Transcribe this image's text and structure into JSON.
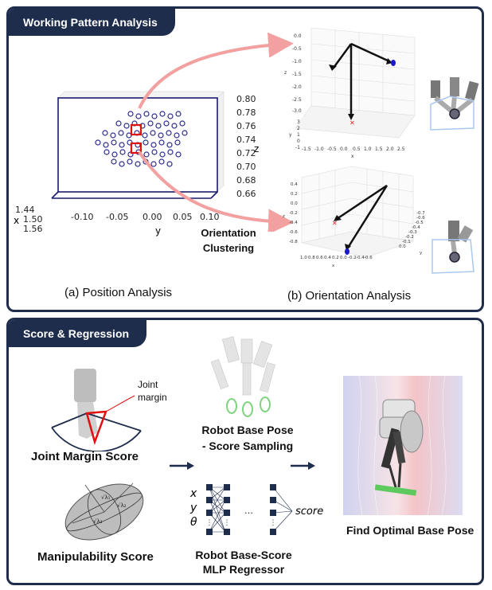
{
  "sections": {
    "top": "Working Pattern Analysis",
    "bottom": "Score & Regression"
  },
  "position_plot": {
    "z_ticks": [
      "0.80",
      "0.78",
      "0.76",
      "0.74",
      "0.72",
      "0.70",
      "0.68",
      "0.66"
    ],
    "z_label": "z",
    "y_ticks": [
      "-0.10",
      "-0.05",
      "0.00",
      "0.05",
      "0.10"
    ],
    "y_label": "y",
    "x_ticks": [
      "1.44",
      "1.50",
      "1.56"
    ],
    "x_label": "x"
  },
  "orientation_plot_top": {
    "z_ticks": [
      "0.0",
      "-0.5",
      "-1.0",
      "-1.5",
      "-2.0",
      "-2.5",
      "-3.0"
    ],
    "z_label": "z",
    "y_ticks": [
      "3",
      "2",
      "1",
      "0",
      "-1"
    ],
    "y_label": "y",
    "x_ticks": [
      "-1.5",
      "-1.0",
      "-0.5",
      "0.0",
      "0.5",
      "1.0",
      "1.5",
      "2.0",
      "2.5"
    ],
    "x_label": "x"
  },
  "orientation_plot_bottom": {
    "z_ticks": [
      "0.4",
      "0.2",
      "0.0",
      "-0.2",
      "-0.4",
      "-0.6",
      "-0.8"
    ],
    "z_label": "z",
    "x_ticks": [
      "1.0",
      "0.8",
      "0.6",
      "0.4",
      "0.2",
      "0.0",
      "-0.2",
      "-0.4",
      "-0.6"
    ],
    "x_label": "x",
    "y_ticks": [
      "0.0",
      "-0.1",
      "-0.2",
      "-0.3",
      "-0.4",
      "-0.5",
      "-0.6",
      "-0.7"
    ],
    "y_label": "y"
  },
  "labels": {
    "orientation_clustering": "Orientation\nClustering",
    "position_analysis": "(a) Position Analysis",
    "orientation_analysis": "(b) Orientation Analysis",
    "joint_margin": "Joint\nmargin",
    "joint_margin_score": "Joint Margin Score",
    "manipulability_score": "Manipulability Score",
    "robot_base_pose_sampling": "Robot Base Pose\n- Score Sampling",
    "mlp_regressor": "Robot Base-Score\nMLP Regressor",
    "find_optimal": "Find Optimal Base Pose",
    "mlp_inputs": [
      "x",
      "y",
      "θ"
    ],
    "mlp_output": "score",
    "ellipsoid_axes": [
      "√λ₁",
      "√λ₂",
      "√λ₃"
    ]
  },
  "colors": {
    "navy": "#1f2d4d",
    "point": "#2c2c8c",
    "highlight": "#e01010",
    "arrow": "#f2a0a0"
  }
}
